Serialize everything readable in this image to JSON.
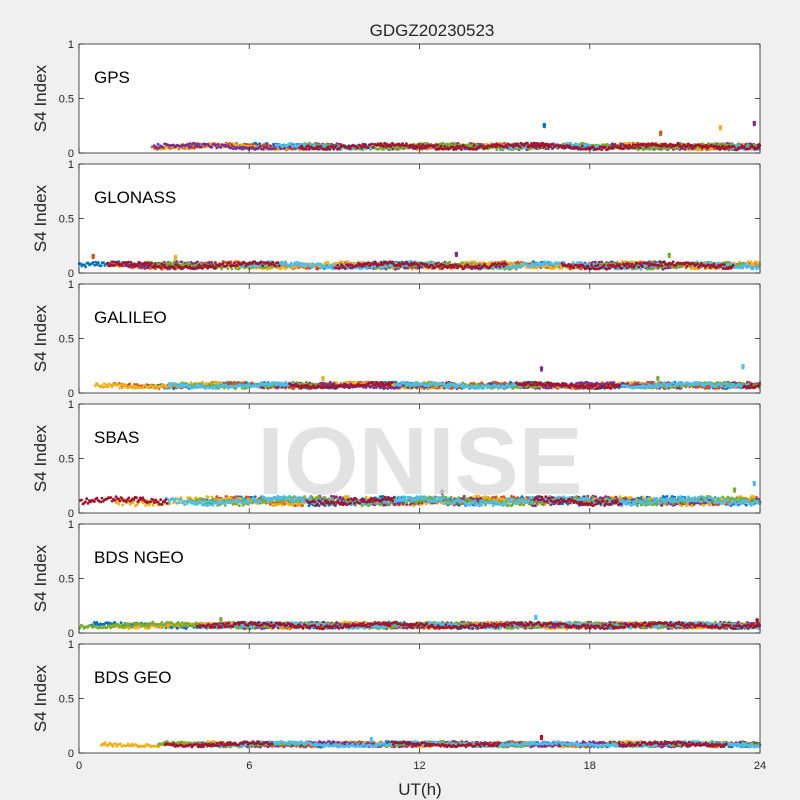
{
  "figure": {
    "title": "GDGZ20230523",
    "watermark": "IONISE"
  },
  "chart_data": {
    "type": "scatter",
    "title": "GDGZ20230523",
    "xlabel": "UT(h)",
    "ylabel": "S4 Index",
    "xlim": [
      0,
      24
    ],
    "ylim": [
      0,
      1
    ],
    "xticks": [
      0,
      6,
      12,
      18,
      24
    ],
    "yticks": [
      0,
      0.5,
      1
    ],
    "grid": false,
    "colors": [
      "#0072BD",
      "#D95319",
      "#EDB120",
      "#7E2F8E",
      "#77AC30",
      "#4DBEEE",
      "#A2142F"
    ],
    "panels": [
      {
        "name": "GPS",
        "baseline": 0.06,
        "spread": 0.035,
        "peaks": [
          {
            "x": 16.4,
            "y": 0.26
          },
          {
            "x": 20.5,
            "y": 0.19
          },
          {
            "x": 22.6,
            "y": 0.24
          },
          {
            "x": 23.8,
            "y": 0.28
          }
        ]
      },
      {
        "name": "GLONASS",
        "baseline": 0.07,
        "spread": 0.04,
        "peaks": [
          {
            "x": 0.5,
            "y": 0.16
          },
          {
            "x": 3.4,
            "y": 0.15
          },
          {
            "x": 13.3,
            "y": 0.18
          },
          {
            "x": 20.8,
            "y": 0.17
          }
        ]
      },
      {
        "name": "GALILEO",
        "baseline": 0.07,
        "spread": 0.035,
        "peaks": [
          {
            "x": 8.6,
            "y": 0.14
          },
          {
            "x": 16.3,
            "y": 0.23
          },
          {
            "x": 20.4,
            "y": 0.14
          },
          {
            "x": 23.4,
            "y": 0.25
          }
        ]
      },
      {
        "name": "SBAS",
        "baseline": 0.11,
        "spread": 0.05,
        "peaks": [
          {
            "x": 12.8,
            "y": 0.2
          },
          {
            "x": 23.1,
            "y": 0.22
          },
          {
            "x": 23.8,
            "y": 0.28
          }
        ]
      },
      {
        "name": "BDS NGEO",
        "baseline": 0.07,
        "spread": 0.035,
        "peaks": [
          {
            "x": 5.0,
            "y": 0.13
          },
          {
            "x": 16.1,
            "y": 0.15
          },
          {
            "x": 23.9,
            "y": 0.12
          }
        ]
      },
      {
        "name": "BDS GEO",
        "baseline": 0.08,
        "spread": 0.03,
        "peaks": [
          {
            "x": 10.3,
            "y": 0.13
          },
          {
            "x": 16.3,
            "y": 0.15
          }
        ]
      }
    ]
  }
}
